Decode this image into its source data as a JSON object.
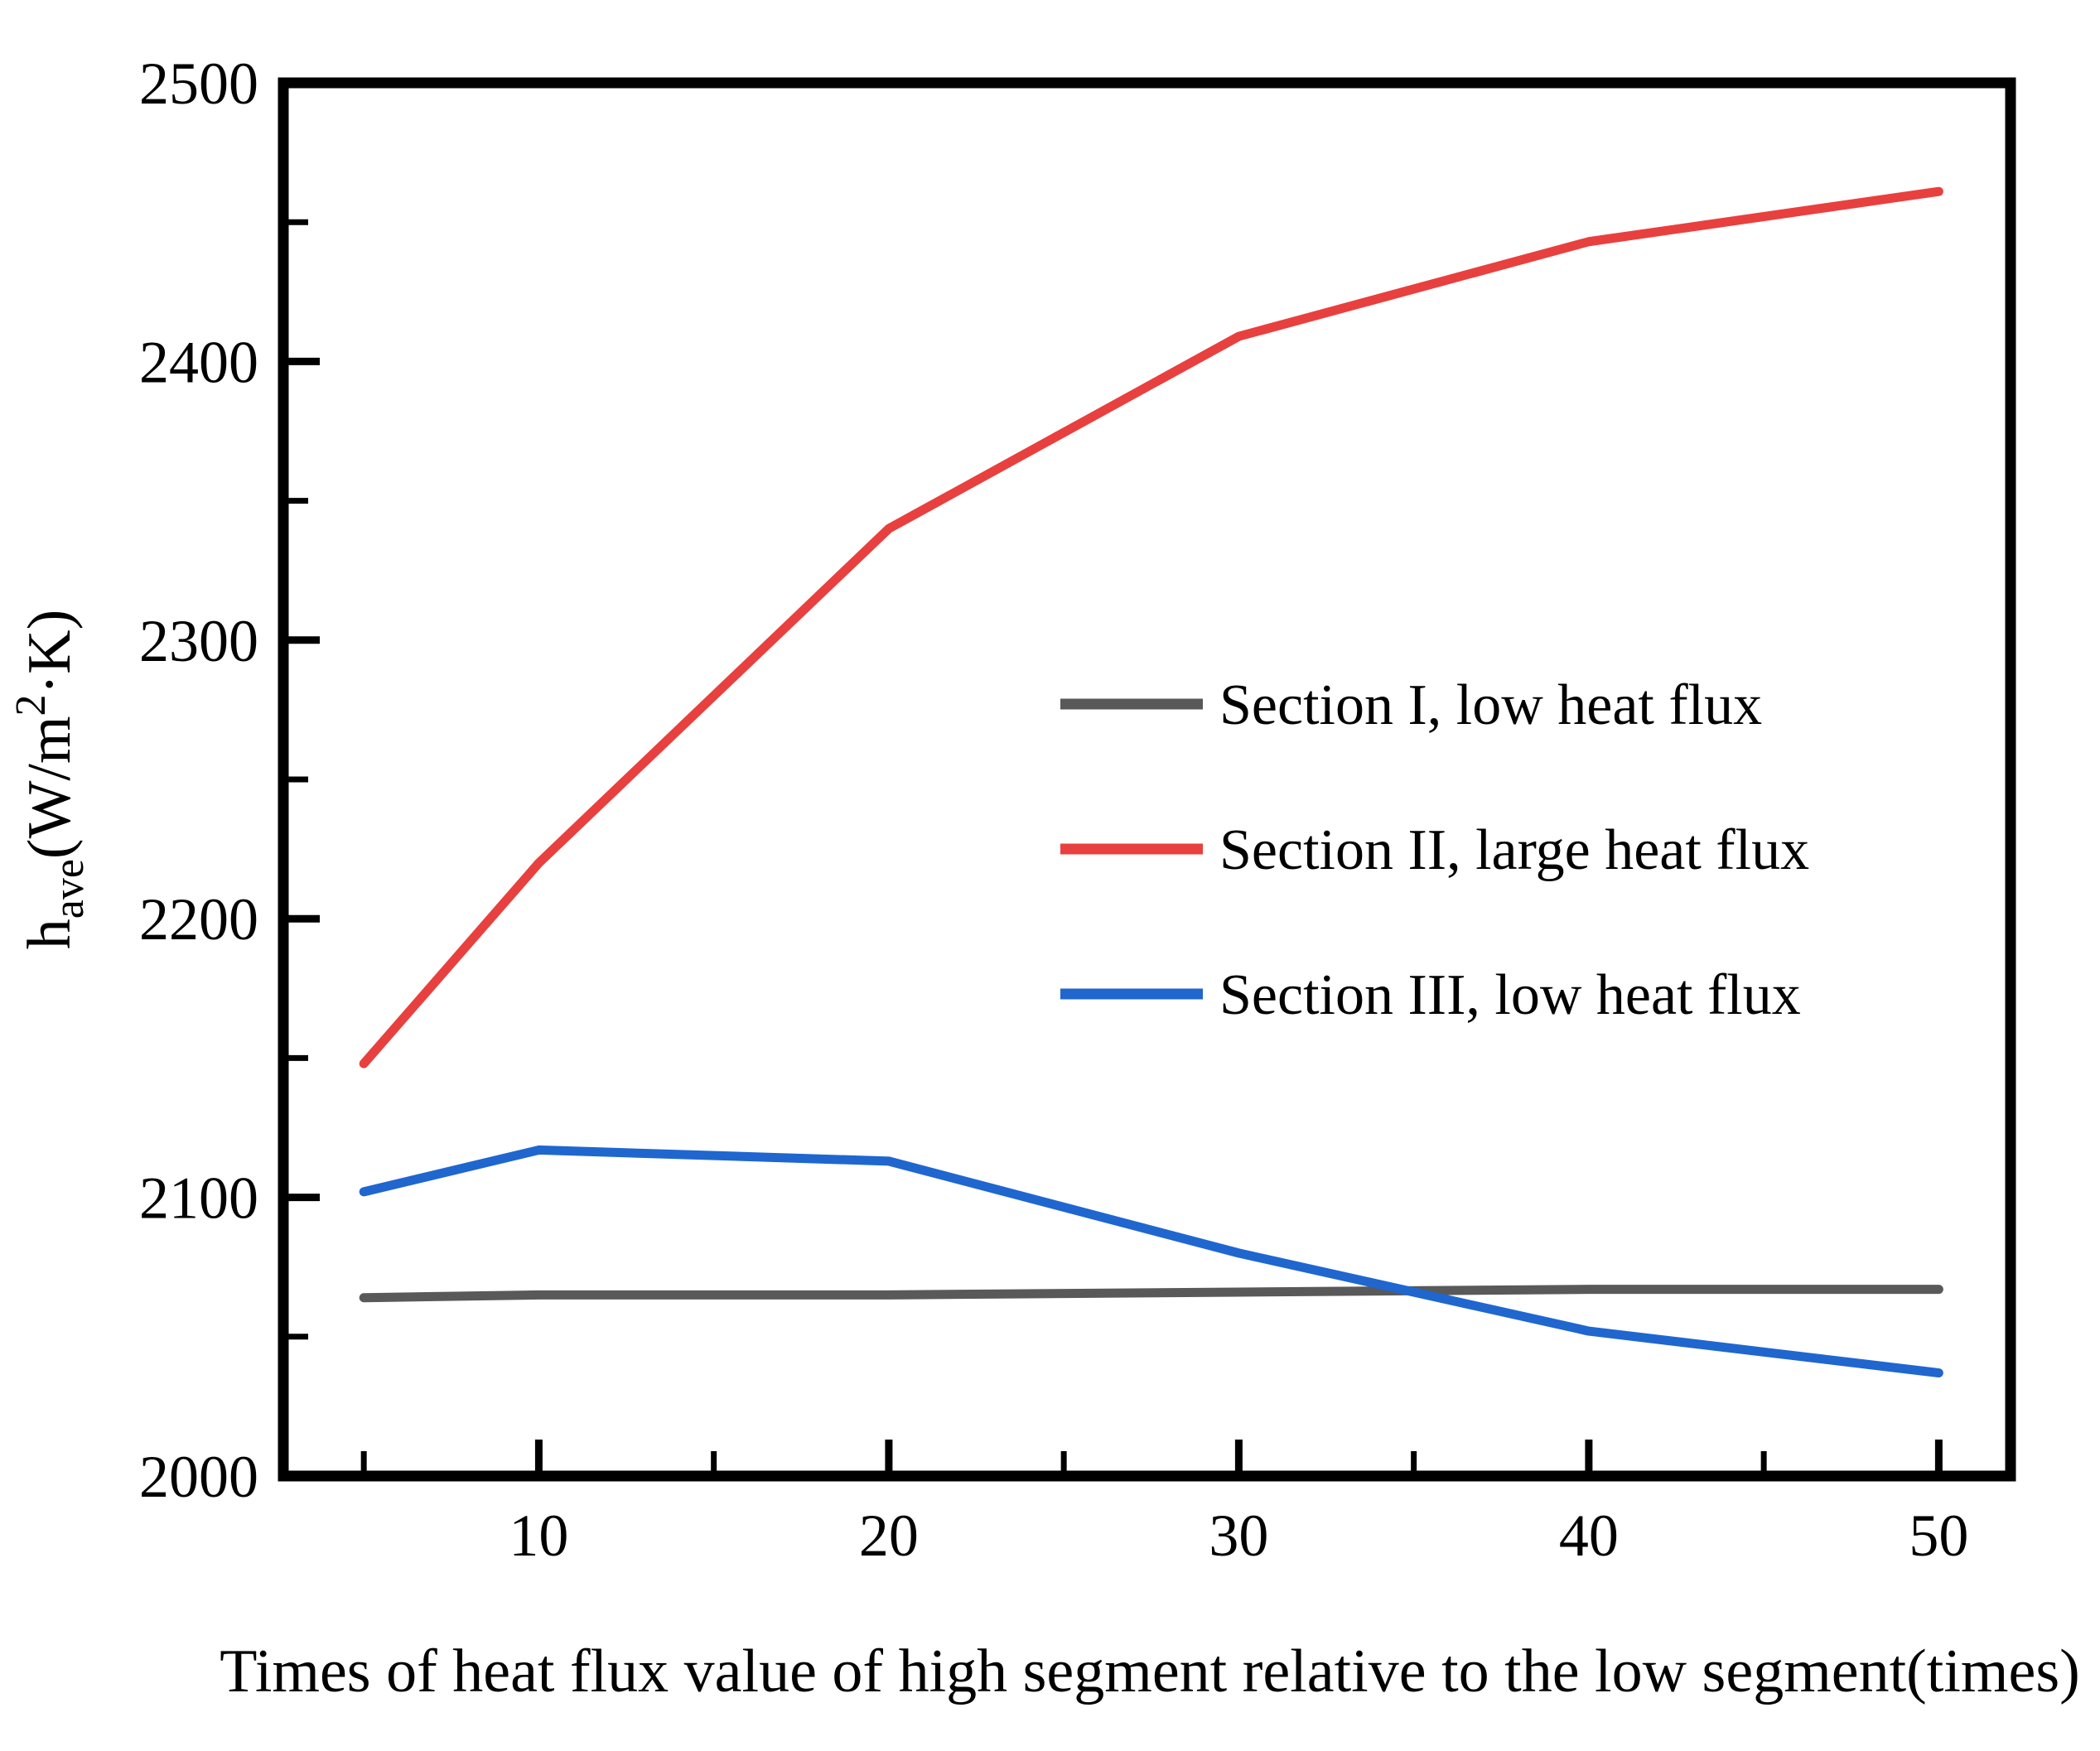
{
  "figure": {
    "background": "#ffffff",
    "frame_color": "#000000"
  },
  "chart_data": {
    "type": "line",
    "x": [
      5,
      10,
      20,
      30,
      40,
      50
    ],
    "series": [
      {
        "name": "Section I, low heat flux",
        "color": "#595959",
        "values": [
          2064,
          2065,
          2065,
          2066,
          2067,
          2067
        ]
      },
      {
        "name": "Section II, large heat flux",
        "color": "#e8403f",
        "values": [
          2148,
          2220,
          2340,
          2409,
          2443,
          2461
        ]
      },
      {
        "name": "Section III, low heat flux",
        "color": "#2066cf",
        "values": [
          2102,
          2117,
          2113,
          2080,
          2052,
          2037
        ]
      }
    ],
    "title": "",
    "xlabel": "Times of heat flux value of high segment relative to the low segment(times)",
    "ylabel": "h_ave(W/m^2·K)",
    "ylabel_parts": [
      {
        "text": "h",
        "style": "normal"
      },
      {
        "text": "ave",
        "style": "sub"
      },
      {
        "text": "(W/m",
        "style": "normal"
      },
      {
        "text": "2",
        "style": "sup"
      },
      {
        "text": "·K)",
        "style": "normal"
      }
    ],
    "xlim": [
      2.7,
      52.05
    ],
    "ylim": [
      2000,
      2500
    ],
    "x_major_ticks": [
      10,
      20,
      30,
      40,
      50
    ],
    "x_minor_ticks": [
      5,
      15,
      25,
      35,
      45
    ],
    "y_major_ticks": [
      2000,
      2100,
      2200,
      2300,
      2400,
      2500
    ],
    "y_minor_ticks": [
      2050,
      2150,
      2250,
      2350,
      2450
    ],
    "grid": false,
    "legend_position": "inside center-right"
  }
}
